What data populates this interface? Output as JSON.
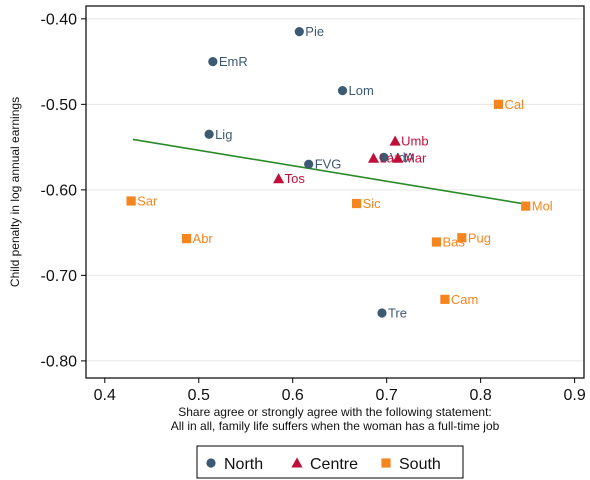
{
  "chart_data": {
    "type": "scatter",
    "title": "",
    "xlabel": [
      "Share agree or strongly agree with the following statement:",
      "All in all, family life suffers when the woman has a full-time job"
    ],
    "ylabel": "Child penalty in log annual earnings",
    "xlim": [
      0.38,
      0.91
    ],
    "ylim": [
      -0.82,
      -0.385
    ],
    "xticks": [
      0.4,
      0.5,
      0.6,
      0.7,
      0.8,
      0.9
    ],
    "xtick_labels": [
      "0.4",
      "0.5",
      "0.6",
      "0.7",
      "0.8",
      "0.9"
    ],
    "yticks": [
      -0.8,
      -0.7,
      -0.6,
      -0.5,
      -0.4
    ],
    "ytick_labels": [
      "-0.80",
      "-0.70",
      "-0.60",
      "-0.50",
      "-0.40"
    ],
    "grid": "horizontal",
    "legend": {
      "placement": "bottom",
      "entries": [
        "North",
        "Centre",
        "South"
      ]
    },
    "series": [
      {
        "name": "North",
        "marker": "circle",
        "color": "#3d5a73",
        "points": [
          {
            "label": "Pie",
            "x": 0.607,
            "y": -0.415
          },
          {
            "label": "EmR",
            "x": 0.515,
            "y": -0.45
          },
          {
            "label": "Lom",
            "x": 0.653,
            "y": -0.484
          },
          {
            "label": "Lig",
            "x": 0.511,
            "y": -0.535
          },
          {
            "label": "FVG",
            "x": 0.617,
            "y": -0.57
          },
          {
            "label": "VdA",
            "x": 0.697,
            "y": -0.562
          },
          {
            "label": "Tre",
            "x": 0.695,
            "y": -0.744
          }
        ]
      },
      {
        "name": "Centre",
        "marker": "triangle",
        "color": "#c0103a",
        "points": [
          {
            "label": "Umb",
            "x": 0.709,
            "y": -0.543
          },
          {
            "label": "Laz",
            "x": 0.686,
            "y": -0.563
          },
          {
            "label": "Mar",
            "x": 0.712,
            "y": -0.563
          },
          {
            "label": "Tos",
            "x": 0.585,
            "y": -0.587
          }
        ]
      },
      {
        "name": "South",
        "marker": "square",
        "color": "#f5861f",
        "points": [
          {
            "label": "Cal",
            "x": 0.819,
            "y": -0.5
          },
          {
            "label": "Sar",
            "x": 0.428,
            "y": -0.613
          },
          {
            "label": "Sic",
            "x": 0.668,
            "y": -0.616
          },
          {
            "label": "Mol",
            "x": 0.848,
            "y": -0.619
          },
          {
            "label": "Abr",
            "x": 0.487,
            "y": -0.657
          },
          {
            "label": "Pug",
            "x": 0.78,
            "y": -0.656
          },
          {
            "label": "Bas",
            "x": 0.753,
            "y": -0.661
          },
          {
            "label": "Cam",
            "x": 0.762,
            "y": -0.728
          }
        ]
      }
    ],
    "fit_line": {
      "color": "#2a8a2a",
      "points": [
        {
          "x": 0.43,
          "y": -0.541
        },
        {
          "x": 0.85,
          "y": -0.617
        }
      ]
    }
  }
}
